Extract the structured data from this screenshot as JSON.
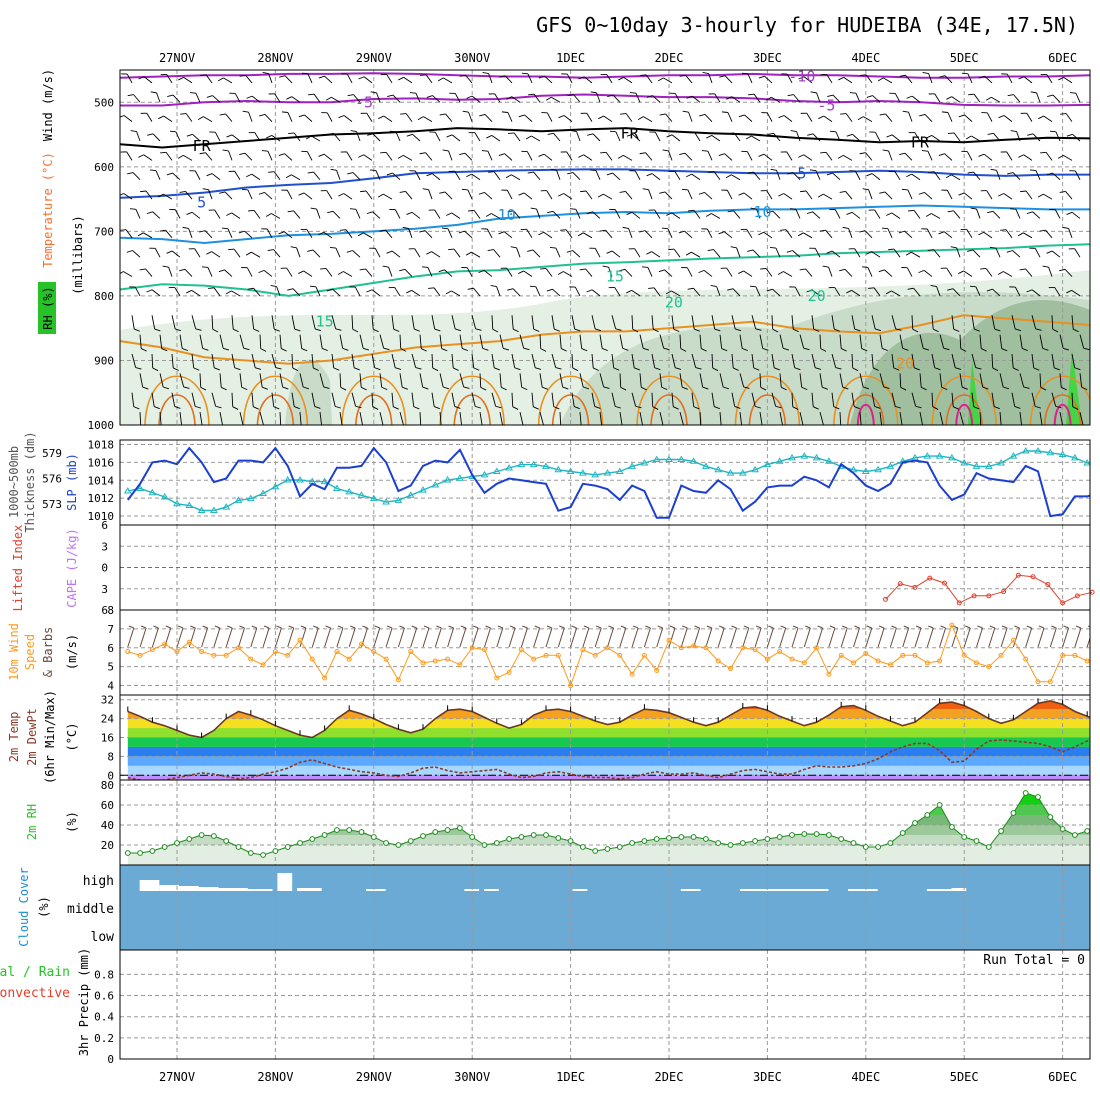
{
  "colors": {
    "temperature": "#ff6b2a",
    "rh": "#27c227",
    "wind": "#000000",
    "slp": "#1c3fd0",
    "thickness": "#21b6c2",
    "lifted": "#e0402c",
    "cape": "#c070ff",
    "wind10m": "#ff9a1a",
    "rh2m": "#27c227",
    "cloud": "#1c8fd6",
    "conv": "#e0402c",
    "cloudfill": "#6aaad4"
  },
  "chart_data": {
    "type": "multi-panel meteogram",
    "title": "GFS 0~10day 3-hourly for HUDEIBA (34E, 17.5N)",
    "dates": [
      "27NOV",
      "28NOV",
      "29NOV",
      "30NOV",
      "1DEC",
      "2DEC",
      "3DEC",
      "4DEC",
      "5DEC",
      "6DEC"
    ],
    "x_index_range": [
      -0.5,
      9.3
    ],
    "panels": [
      {
        "id": "upper",
        "ylabel": [
          "Wind (m/s)",
          "Temperature (°C)",
          "RH (%)",
          "(millibars)"
        ],
        "ylim": [
          450,
          1000
        ],
        "yticks": [
          500,
          600,
          700,
          800,
          900,
          1000
        ],
        "contour_labels": [
          {
            "text": "-10",
            "x": 6.35,
            "p": 460,
            "color": "#a040c0"
          },
          {
            "text": "-5",
            "x": 1.9,
            "p": 500,
            "color": "#a040c0"
          },
          {
            "text": "-5",
            "x": 6.6,
            "p": 505,
            "color": "#a040c0"
          },
          {
            "text": "FR",
            "x": 0.25,
            "p": 568,
            "color": "#000000"
          },
          {
            "text": "FR",
            "x": 4.6,
            "p": 548,
            "color": "#000000"
          },
          {
            "text": "FR",
            "x": 7.55,
            "p": 562,
            "color": "#000000"
          },
          {
            "text": "5",
            "x": 0.25,
            "p": 655,
            "color": "#2050d0"
          },
          {
            "text": "5",
            "x": 6.35,
            "p": 610,
            "color": "#2050d0"
          },
          {
            "text": "10",
            "x": 3.35,
            "p": 675,
            "color": "#1e90e0"
          },
          {
            "text": "10",
            "x": 5.95,
            "p": 670,
            "color": "#1e90e0"
          },
          {
            "text": "15",
            "x": 4.45,
            "p": 770,
            "color": "#20c090"
          },
          {
            "text": "15",
            "x": 1.5,
            "p": 840,
            "color": "#20c090"
          },
          {
            "text": "20",
            "x": 5.05,
            "p": 810,
            "color": "#20c090"
          },
          {
            "text": "20",
            "x": 6.5,
            "p": 800,
            "color": "#20c090"
          },
          {
            "text": "20",
            "x": 7.4,
            "p": 905,
            "color": "#e89020"
          }
        ],
        "isotherms": [
          {
            "label": "-10",
            "color": "#a020c0",
            "p": [
              462,
              460,
              458,
              458,
              456,
              456,
              455,
              456,
              458,
              460,
              460,
              462,
              460,
              458,
              458,
              456,
              458,
              458,
              460,
              462,
              462,
              460,
              460,
              458
            ]
          },
          {
            "label": "-5",
            "color": "#a020c0",
            "p": [
              505,
              505,
              500,
              498,
              500,
              500,
              495,
              494,
              496,
              495,
              490,
              488,
              490,
              492,
              492,
              494,
              498,
              500,
              498,
              500,
              504,
              505,
              505,
              504
            ]
          },
          {
            "label": "FR",
            "color": "#000000",
            "p": [
              565,
              570,
              565,
              560,
              555,
              550,
              548,
              545,
              540,
              542,
              545,
              542,
              540,
              545,
              548,
              550,
              555,
              558,
              562,
              560,
              562,
              558,
              555,
              556
            ]
          },
          {
            "label": "5",
            "color": "#2050d0",
            "p": [
              648,
              645,
              640,
              632,
              628,
              625,
              618,
              610,
              608,
              606,
              605,
              604,
              604,
              606,
              608,
              610,
              610,
              608,
              606,
              608,
              612,
              614,
              612,
              612
            ]
          },
          {
            "label": "10",
            "color": "#1e90e0",
            "p": [
              710,
              712,
              718,
              712,
              706,
              704,
              700,
              696,
              690,
              680,
              676,
              672,
              670,
              672,
              668,
              666,
              666,
              664,
              662,
              660,
              662,
              664,
              666,
              666
            ]
          },
          {
            "label": "15",
            "color": "#20c090",
            "p": [
              790,
              782,
              784,
              790,
              800,
              790,
              780,
              770,
              762,
              760,
              755,
              750,
              748,
              745,
              742,
              740,
              738,
              734,
              732,
              730,
              728,
              726,
              722,
              720
            ]
          },
          {
            "label": "20",
            "color": "#e89020",
            "p": [
              870,
              880,
              895,
              900,
              905,
              900,
              890,
              880,
              875,
              870,
              860,
              855,
              855,
              850,
              845,
              840,
              850,
              855,
              858,
              845,
              830,
              835,
              840,
              845
            ]
          }
        ]
      },
      {
        "id": "slp",
        "ylabel_left": [
          "1000~500mb",
          "Thickness (dm)"
        ],
        "ylabel_right": "SLP (mb)",
        "ylim": [
          1009,
          1018.5
        ],
        "yticks_right": [
          1010,
          1012,
          1014,
          1016,
          1018
        ],
        "yticks_left": [
          573,
          576,
          579
        ],
        "slp_series": [
          1011.8,
          1013.6,
          1016.0,
          1016.2,
          1015.8,
          1017.6,
          1016.0,
          1013.8,
          1014.2,
          1016.2,
          1016.2,
          1016.0,
          1017.6,
          1015.6,
          1012.2,
          1013.6,
          1013.0,
          1015.4,
          1015.4,
          1015.6,
          1017.6,
          1016.0,
          1012.8,
          1013.4,
          1015.6,
          1016.2,
          1016.0,
          1017.4,
          1014.6,
          1012.6,
          1013.6,
          1014.2,
          1014.0,
          1013.8,
          1013.6,
          1010.6,
          1011.0,
          1013.6,
          1013.4,
          1013.0,
          1011.8,
          1013.4,
          1012.8,
          1009.8,
          1009.8,
          1013.4,
          1012.8,
          1012.6,
          1014.0,
          1013.0,
          1010.6,
          1011.6,
          1013.2,
          1013.4,
          1013.4,
          1014.4,
          1014.0,
          1013.2,
          1015.8,
          1014.8,
          1013.4,
          1012.8,
          1013.6,
          1016.0,
          1016.2,
          1016.0,
          1013.4,
          1011.8,
          1012.4,
          1014.8,
          1014.2,
          1014.0,
          1013.8,
          1015.6,
          1015.0,
          1010.0,
          1010.2,
          1012.2,
          1012.2,
          1012.6,
          1013.2,
          1015.0
        ],
        "thickness_series": [
          574.5,
          574.8,
          574.3,
          573.8,
          573.0,
          572.8,
          572.2,
          572.2,
          572.6,
          573.4,
          573.6,
          574.2,
          575.0,
          575.8,
          575.8,
          575.6,
          575.6,
          574.8,
          574.4,
          574.0,
          573.6,
          573.2,
          573.4,
          574.0,
          574.6,
          575.2,
          575.8,
          576.0,
          576.2,
          576.4,
          576.8,
          577.2,
          577.6,
          577.6,
          577.4,
          577.0,
          576.8,
          576.6,
          576.4,
          576.6,
          576.8,
          577.4,
          577.8,
          578.2,
          578.2,
          578.2,
          578.0,
          577.4,
          577.0,
          576.6,
          576.6,
          577.0,
          577.6,
          578.0,
          578.4,
          578.6,
          578.4,
          578.0,
          577.4,
          577.0,
          576.8,
          577.0,
          577.4,
          578.0,
          578.4,
          578.6,
          578.6,
          578.4,
          577.8,
          577.4,
          577.4,
          577.8,
          578.6,
          579.2,
          579.2,
          579.0,
          578.8,
          578.4,
          577.8,
          577.4,
          577.8,
          578.6
        ]
      },
      {
        "id": "cape",
        "ylabel_left": "Lifted Index",
        "ylabel_right": "CAPE (J/kg)",
        "ylim": [
          -6,
          6
        ],
        "yticks": [
          "-6",
          "-3",
          "0",
          "3",
          "6"
        ],
        "lifted_series": [
          {
            "x": 7.2,
            "v": 4.5
          },
          {
            "x": 7.35,
            "v": 2.3
          },
          {
            "x": 7.5,
            "v": 2.8
          },
          {
            "x": 7.65,
            "v": 1.5
          },
          {
            "x": 7.8,
            "v": 2.2
          },
          {
            "x": 7.95,
            "v": 5.0
          },
          {
            "x": 8.1,
            "v": 4.0
          },
          {
            "x": 8.25,
            "v": 4.0
          },
          {
            "x": 8.4,
            "v": 3.4
          },
          {
            "x": 8.55,
            "v": 1.1
          },
          {
            "x": 8.7,
            "v": 1.3
          },
          {
            "x": 8.85,
            "v": 2.4
          },
          {
            "x": 9.0,
            "v": 5.0
          },
          {
            "x": 9.15,
            "v": 4.0
          },
          {
            "x": 9.3,
            "v": 3.5
          }
        ]
      },
      {
        "id": "wind10m",
        "ylabel": [
          "10m Wind",
          "Speed",
          "& Barbs",
          "(m/s)"
        ],
        "ylim": [
          3.5,
          8.0
        ],
        "yticks": [
          4,
          5,
          6,
          7,
          8
        ],
        "series": [
          5.8,
          5.6,
          5.9,
          6.2,
          5.8,
          6.3,
          5.8,
          5.6,
          5.6,
          6.0,
          5.4,
          5.1,
          5.8,
          5.6,
          6.4,
          5.4,
          4.4,
          5.8,
          5.4,
          6.2,
          5.8,
          5.4,
          4.3,
          5.8,
          5.2,
          5.3,
          5.4,
          5.1,
          6.0,
          5.9,
          4.4,
          4.7,
          5.9,
          5.4,
          5.6,
          5.6,
          4.0,
          5.9,
          5.6,
          6.0,
          5.6,
          4.6,
          5.6,
          4.8,
          6.4,
          6.0,
          6.1,
          6.0,
          5.3,
          4.9,
          6.0,
          5.9,
          5.4,
          5.8,
          5.4,
          5.2,
          6.0,
          4.6,
          5.6,
          5.2,
          5.7,
          5.3,
          5.1,
          5.6,
          5.6,
          5.2,
          5.3,
          7.2,
          5.6,
          5.2,
          5.0,
          5.6,
          6.4,
          5.4,
          4.2,
          4.2,
          5.6,
          5.6,
          5.3,
          5.4,
          5.7,
          4.6
        ]
      },
      {
        "id": "temp2m",
        "ylabel": [
          "2m Temp",
          "2m DewPt",
          "(6hr Min/Max)",
          "(°C)"
        ],
        "ylim": [
          -2,
          34
        ],
        "yticks": [
          0,
          8,
          16,
          24,
          32
        ],
        "temp_series": [
          27.0,
          25.0,
          22.5,
          21.0,
          19.0,
          17.0,
          16.0,
          19.0,
          24.0,
          27.0,
          25.5,
          23.5,
          21.0,
          19.0,
          17.0,
          16.0,
          19.0,
          24.0,
          27.5,
          26.0,
          24.0,
          21.5,
          19.5,
          18.0,
          19.5,
          24.0,
          27.5,
          28.0,
          27.0,
          24.5,
          22.0,
          20.0,
          21.5,
          25.5,
          27.5,
          28.0,
          27.0,
          25.0,
          23.0,
          21.5,
          22.5,
          25.5,
          28.0,
          27.5,
          26.5,
          24.5,
          22.5,
          21.0,
          22.5,
          25.5,
          28.5,
          29.0,
          27.5,
          25.0,
          23.0,
          21.0,
          22.5,
          25.5,
          29.0,
          29.5,
          27.5,
          25.0,
          23.0,
          21.0,
          22.5,
          26.5,
          30.5,
          31.0,
          29.5,
          27.0,
          24.0,
          22.0,
          23.5,
          27.0,
          30.5,
          31.5,
          30.0,
          27.0,
          25.0,
          23.0,
          21.0,
          22.5
        ],
        "dew_series": [
          -1.0,
          -2.0,
          -2.5,
          -2.0,
          -1.0,
          0.0,
          1.0,
          0.5,
          -0.5,
          -1.5,
          -1.0,
          0.5,
          1.5,
          3.0,
          5.5,
          6.5,
          5.0,
          3.5,
          2.5,
          1.5,
          1.0,
          0.0,
          -0.5,
          1.0,
          3.0,
          3.5,
          2.0,
          1.0,
          1.5,
          2.0,
          2.5,
          0.5,
          -1.0,
          -0.5,
          1.0,
          1.5,
          0.5,
          -0.5,
          -1.0,
          -1.0,
          -1.5,
          -1.0,
          0.5,
          1.5,
          0.5,
          0.5,
          1.0,
          0.0,
          -1.0,
          0.5,
          2.0,
          2.5,
          1.5,
          0.5,
          0.5,
          2.5,
          4.0,
          3.5,
          3.5,
          4.0,
          5.0,
          7.0,
          10.0,
          12.0,
          13.5,
          13.5,
          10.5,
          5.5,
          6.0,
          11.0,
          14.5,
          15.0,
          14.5,
          14.0,
          13.5,
          12.0,
          10.0,
          12.0,
          14.5,
          16.0,
          16.0,
          15.5
        ]
      },
      {
        "id": "rh2m",
        "ylabel": [
          "2m RH",
          "(%)"
        ],
        "ylim": [
          0,
          85
        ],
        "yticks": [
          20,
          40,
          60,
          80
        ],
        "series": [
          12,
          12,
          14,
          18,
          22,
          26,
          30,
          29,
          24,
          18,
          12,
          10,
          14,
          18,
          22,
          26,
          30,
          35,
          35,
          33,
          28,
          22,
          20,
          24,
          29,
          33,
          35,
          37,
          28,
          20,
          22,
          26,
          28,
          30,
          30,
          27,
          24,
          18,
          14,
          16,
          18,
          22,
          24,
          26,
          27,
          28,
          28,
          26,
          22,
          20,
          22,
          24,
          26,
          28,
          30,
          31,
          31,
          30,
          26,
          22,
          18,
          18,
          22,
          32,
          42,
          50,
          60,
          38,
          28,
          24,
          18,
          34,
          52,
          72,
          68,
          48,
          36,
          30,
          34,
          44,
          58,
          72
        ]
      },
      {
        "id": "cloud",
        "ylabel": [
          "Cloud Cover",
          "(%)"
        ],
        "levels": [
          "high",
          "middle",
          "low"
        ]
      },
      {
        "id": "precip",
        "ylabel_left": [
          "Total / Rain",
          "Convective"
        ],
        "ylabel_right": [
          "3hr Precip (mm)"
        ],
        "ylim": [
          0,
          1.0
        ],
        "yticks": [
          "0",
          "0.2",
          "0.4",
          "0.6",
          "0.8"
        ],
        "run_total": "Run Total = 0"
      }
    ]
  }
}
